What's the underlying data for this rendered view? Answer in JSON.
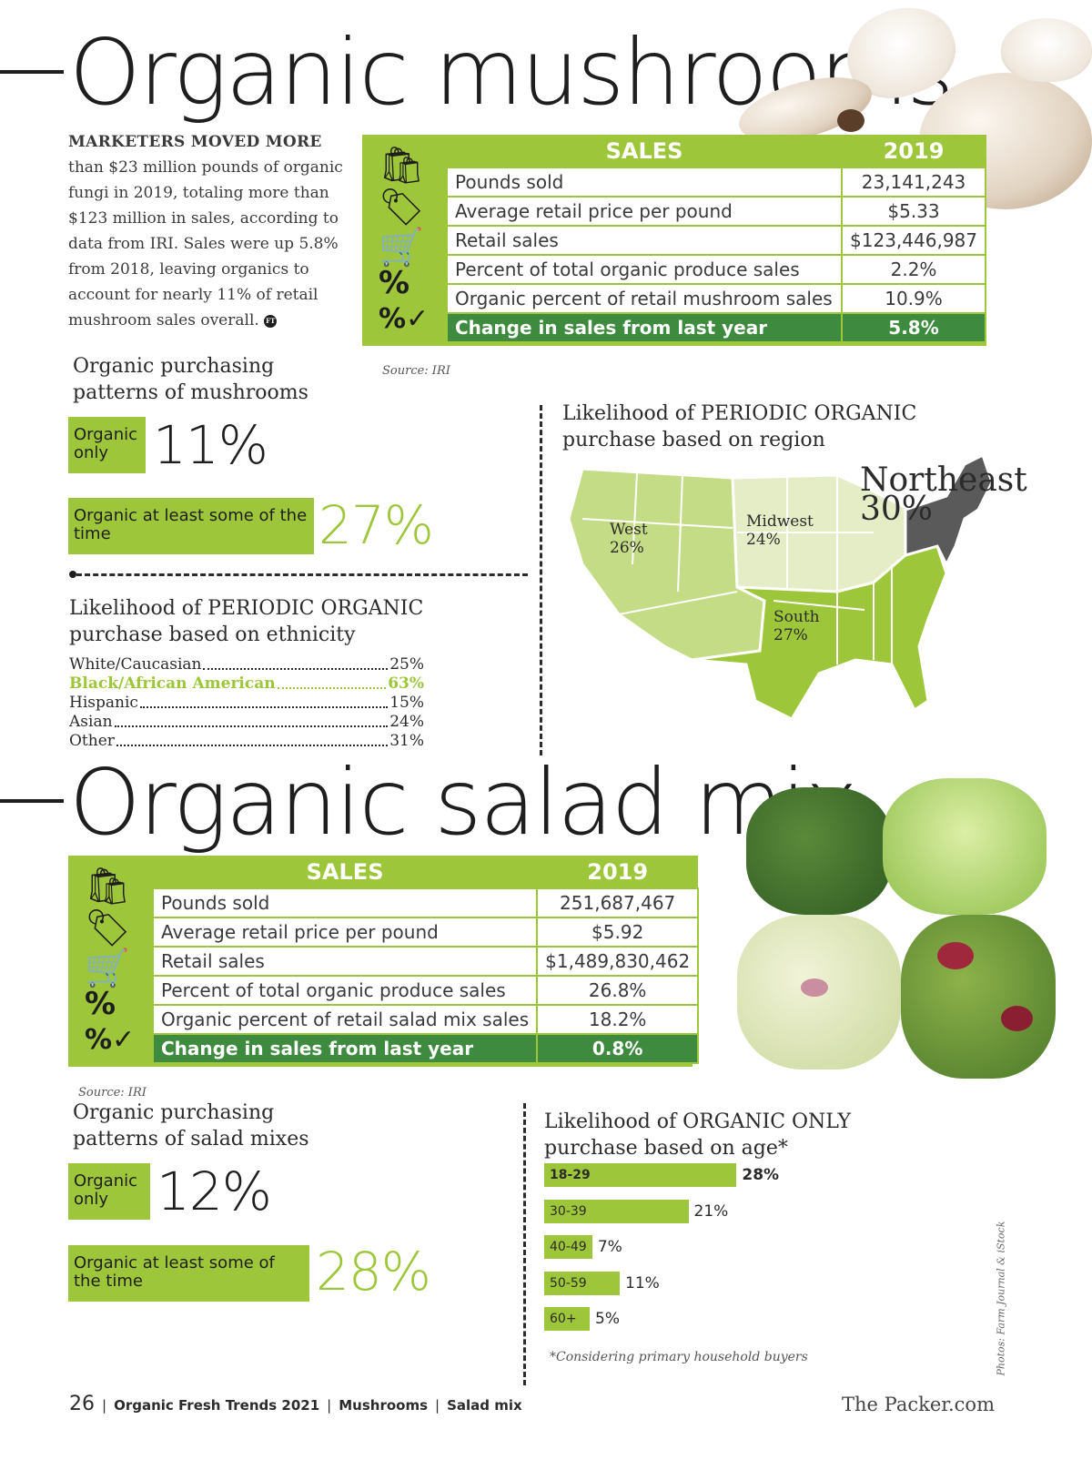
{
  "mushrooms": {
    "title": "Organic mushrooms",
    "intro_lead": "MARKETERS MOVED MORE",
    "intro_body": " than $23 million pounds of organic fungi in 2019, totaling more than $123 million in sales, according to data from IRI. Sales were up 5.8% from 2018, leaving organics to account for nearly 11% of retail mushroom sales overall.",
    "intro_badge": "FT",
    "sales": {
      "header_label": "SALES",
      "header_year": "2019",
      "rows": [
        {
          "label": "Pounds sold",
          "value": "23,141,243"
        },
        {
          "label": "Average retail price per pound",
          "value": "$5.33"
        },
        {
          "label": "Retail sales",
          "value": "$123,446,987"
        },
        {
          "label": "Percent of total organic produce sales",
          "value": "2.2%"
        },
        {
          "label": "Organic percent of retail mushroom sales",
          "value": "10.9%"
        }
      ],
      "change_label": "Change in sales from last year",
      "change_value": "5.8%",
      "source": "Source: IRI"
    },
    "patterns": {
      "heading": "Organic purchasing patterns of mushrooms",
      "organic_only_label": "Organic only",
      "organic_only_value": "11%",
      "some_label": "Organic at least some of the time",
      "some_value": "27%"
    },
    "ethnicity": {
      "heading": "Likelihood of PERIODIC ORGANIC purchase based on ethnicity",
      "rows": [
        {
          "label": "White/Caucasian",
          "value": "25%"
        },
        {
          "label": "Black/African American",
          "value": "63%"
        },
        {
          "label": "Hispanic",
          "value": "15%"
        },
        {
          "label": "Asian",
          "value": "24%"
        },
        {
          "label": "Other",
          "value": "31%"
        }
      ]
    },
    "region": {
      "heading": "Likelihood of PERIODIC ORGANIC purchase based on region",
      "west_name": "West",
      "west_value": "26%",
      "midwest_name": "Midwest",
      "midwest_value": "24%",
      "south_name": "South",
      "south_value": "27%",
      "northeast_name": "Northeast",
      "northeast_value": "30%"
    }
  },
  "salad": {
    "title": "Organic salad mix",
    "sales": {
      "header_label": "SALES",
      "header_year": "2019",
      "rows": [
        {
          "label": "Pounds sold",
          "value": "251,687,467"
        },
        {
          "label": "Average retail price per pound",
          "value": "$5.92"
        },
        {
          "label": "Retail sales",
          "value": "$1,489,830,462"
        },
        {
          "label": "Percent of total organic produce sales",
          "value": "26.8%"
        },
        {
          "label": "Organic percent of retail salad mix sales",
          "value": "18.2%"
        }
      ],
      "change_label": "Change in sales from last year",
      "change_value": "0.8%",
      "source": "Source: IRI"
    },
    "patterns": {
      "heading": "Organic purchasing patterns of salad mixes",
      "organic_only_label": "Organic only",
      "organic_only_value": "12%",
      "some_label": "Organic at least some of the time",
      "some_value": "28%"
    },
    "age": {
      "heading": "Likelihood of ORGANIC ONLY purchase based on age*",
      "bars": [
        {
          "label": "18-29",
          "value": 28,
          "value_text": "28%"
        },
        {
          "label": "30-39",
          "value": 21,
          "value_text": "21%"
        },
        {
          "label": "40-49",
          "value": 7,
          "value_text": "7%"
        },
        {
          "label": "50-59",
          "value": 11,
          "value_text": "11%"
        },
        {
          "label": "60+",
          "value": 5,
          "value_text": "5%"
        }
      ],
      "footnote": "*Considering primary household buyers"
    }
  },
  "photo_credit": "Photos: Farm Journal & iStock",
  "footer": {
    "page_number": "26",
    "publication": "Organic Fresh Trends 2021",
    "section1": "Mushrooms",
    "section2": "Salad mix",
    "site": "The Packer.com"
  },
  "colors": {
    "accent_green": "#9dc63a",
    "dark_green": "#3e8a3e",
    "northeast_gray": "#5a5a5a"
  },
  "icons": [
    "shopping-bag-icon",
    "price-tag-icon",
    "basket-icon",
    "percent-badge-icon",
    "percent-check-icon"
  ]
}
